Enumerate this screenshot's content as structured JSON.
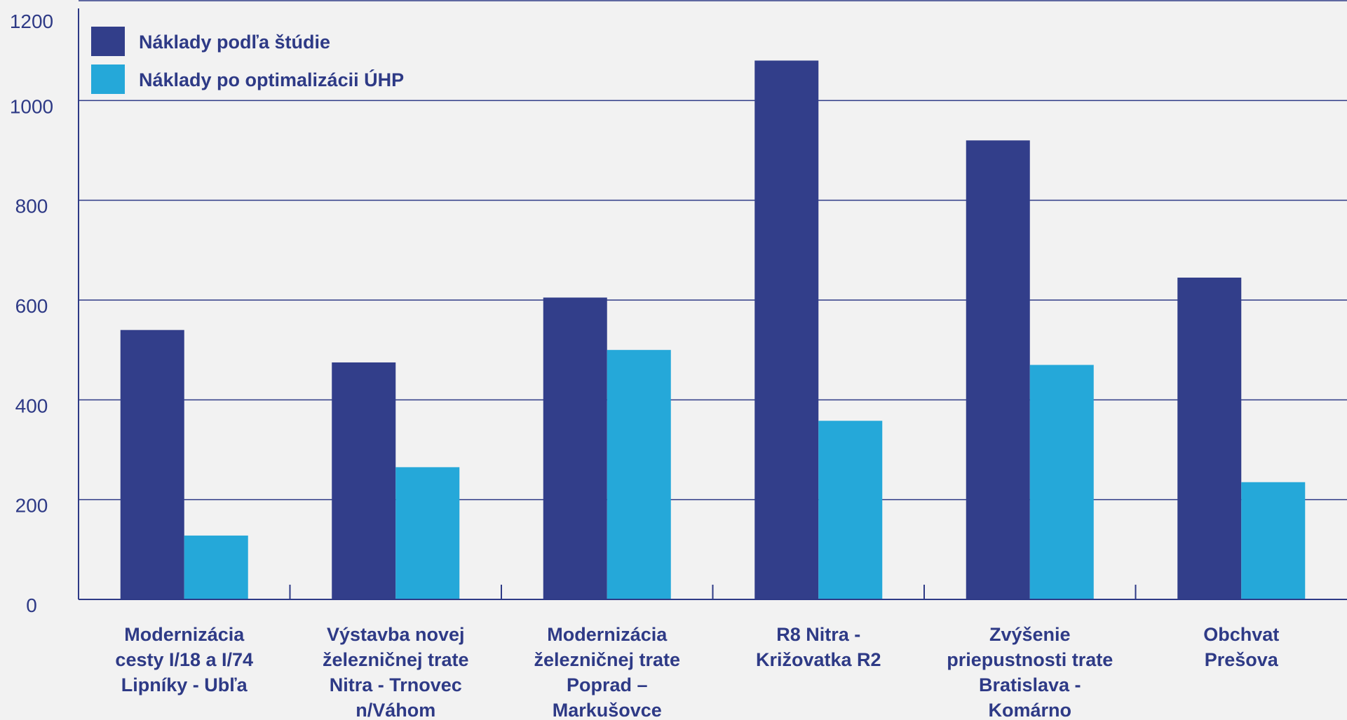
{
  "chart_data": {
    "type": "bar",
    "categories": [
      [
        "Modernizácia",
        "cesty I/18 a I/74",
        "Lipníky - Ubľa"
      ],
      [
        "Výstavba novej",
        "železničnej trate",
        "Nitra - Trnovec",
        "n/Váhom"
      ],
      [
        "Modernizácia",
        "železničnej trate",
        "Poprad –",
        "Markušovce"
      ],
      [
        "R8 Nitra -",
        "Križovatka R2"
      ],
      [
        "Zvýšenie",
        "priepustnosti trate",
        "Bratislava -",
        "Komárno"
      ],
      [
        "Obchvat",
        "Prešova"
      ]
    ],
    "series": [
      {
        "name": "Náklady podľa štúdie",
        "color": "#323e8a",
        "values": [
          540,
          475,
          605,
          1080,
          920,
          645
        ]
      },
      {
        "name": "Náklady po optimalizácii ÚHP",
        "color": "#25a8d9",
        "values": [
          128,
          265,
          500,
          358,
          470,
          235
        ]
      }
    ],
    "ylim": [
      0,
      1200
    ],
    "yticks": [
      0,
      200,
      400,
      600,
      800,
      1000,
      1200
    ],
    "grid": true,
    "legend": "top-left"
  }
}
